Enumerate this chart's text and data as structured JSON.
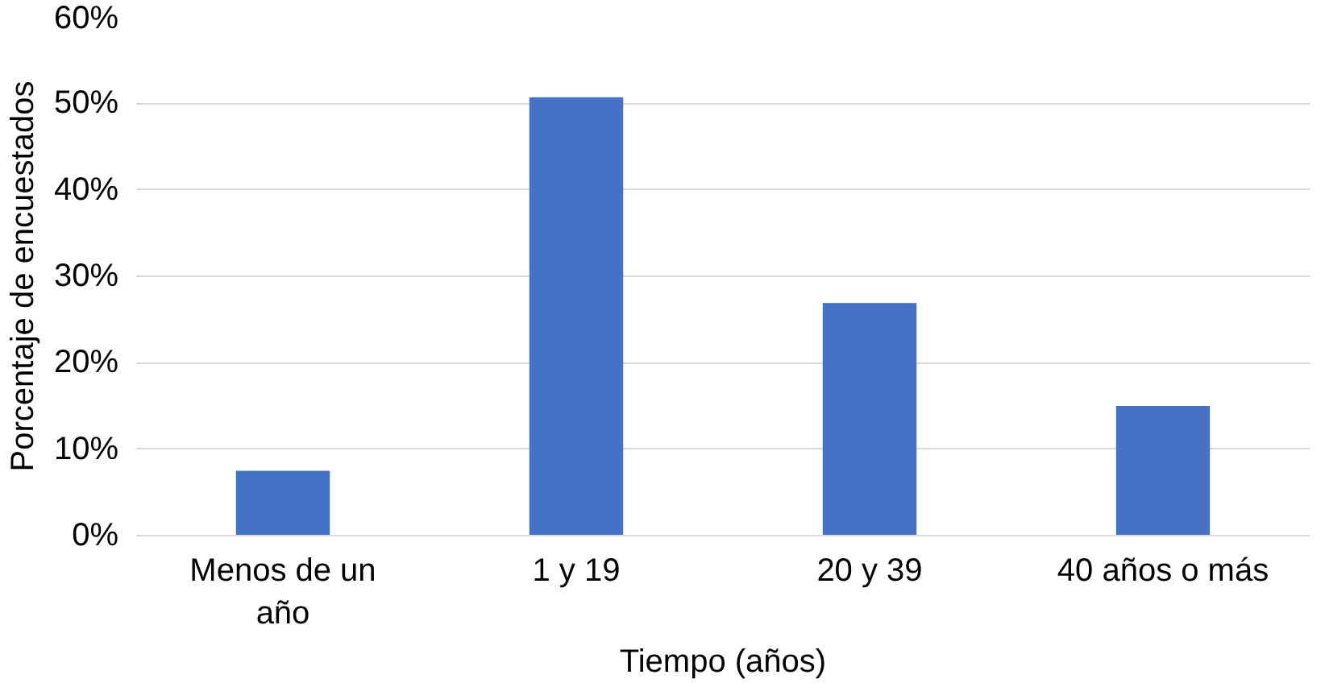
{
  "chart_data": {
    "type": "bar",
    "xlabel": "Tiempo (años)",
    "ylabel": "Porcentaje de encuestados",
    "categories": [
      "Menos de un año",
      "1 y 19",
      "20 y 39",
      "40 años o más"
    ],
    "values": [
      7.5,
      50.7,
      26.9,
      15.0
    ],
    "color": "#4472c4",
    "ylim": [
      0,
      60
    ],
    "yticks": [
      {
        "value": 0,
        "label": "0%"
      },
      {
        "value": 10,
        "label": "10%"
      },
      {
        "value": 20,
        "label": "20%"
      },
      {
        "value": 30,
        "label": "30%"
      },
      {
        "value": 40,
        "label": "40%"
      },
      {
        "value": 50,
        "label": "50%"
      },
      {
        "value": 60,
        "label": "60%"
      }
    ],
    "grid": "y"
  }
}
